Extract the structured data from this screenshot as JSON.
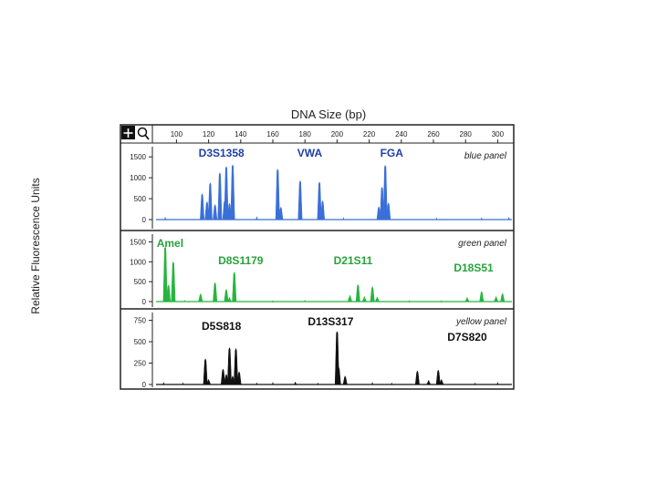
{
  "chart_data": {
    "type": "line",
    "title": "DNA Size (bp)",
    "ylabel": "Relative Fluorescence Units",
    "x_ticks": [
      100,
      120,
      140,
      160,
      180,
      200,
      220,
      240,
      260,
      280,
      300
    ],
    "xlim": [
      85,
      310
    ],
    "toolbar_icons": [
      "plus-icon",
      "magnifier-icon"
    ],
    "panels": [
      {
        "name": "blue panel",
        "color": "#3a6fd8",
        "label_color": "#1f3fa6",
        "y_ticks": [
          0,
          500,
          1000,
          1500
        ],
        "y_tick_labels": [
          "0",
          "500",
          "1000",
          "1500"
        ],
        "ylim": [
          0,
          1700
        ],
        "loci": [
          {
            "name": "D3S1358",
            "x": 128
          },
          {
            "name": "VWA",
            "x": 183
          },
          {
            "name": "FGA",
            "x": 234
          }
        ],
        "peaks": [
          {
            "x": 116,
            "h": 620
          },
          {
            "x": 119,
            "h": 430
          },
          {
            "x": 121,
            "h": 880
          },
          {
            "x": 124,
            "h": 360
          },
          {
            "x": 127,
            "h": 1120
          },
          {
            "x": 130,
            "h": 450
          },
          {
            "x": 131,
            "h": 1270
          },
          {
            "x": 133,
            "h": 390
          },
          {
            "x": 135,
            "h": 1310
          },
          {
            "x": 163,
            "h": 1210
          },
          {
            "x": 165,
            "h": 300
          },
          {
            "x": 177,
            "h": 930
          },
          {
            "x": 189,
            "h": 900
          },
          {
            "x": 191,
            "h": 450
          },
          {
            "x": 226,
            "h": 310
          },
          {
            "x": 228,
            "h": 780
          },
          {
            "x": 230,
            "h": 1300
          },
          {
            "x": 232,
            "h": 400
          }
        ],
        "minor_peaks": [
          {
            "x": 93,
            "h": 60
          },
          {
            "x": 150,
            "h": 70
          },
          {
            "x": 204,
            "h": 50
          },
          {
            "x": 262,
            "h": 40
          },
          {
            "x": 290,
            "h": 50
          },
          {
            "x": 307,
            "h": 60
          }
        ]
      },
      {
        "name": "green panel",
        "color": "#27b53e",
        "label_color": "#27a33a",
        "y_ticks": [
          0,
          500,
          1000,
          1500
        ],
        "y_tick_labels": [
          "0",
          "500",
          "1000",
          "1500"
        ],
        "ylim": [
          0,
          1650
        ],
        "loci": [
          {
            "name": "Amel",
            "x": 96
          },
          {
            "name": "D8S1179",
            "x": 140
          },
          {
            "name": "D21S11",
            "x": 210
          },
          {
            "name": "D18S51",
            "x": 285
          }
        ],
        "peaks": [
          {
            "x": 93,
            "h": 1380
          },
          {
            "x": 95,
            "h": 420
          },
          {
            "x": 98,
            "h": 1000
          },
          {
            "x": 115,
            "h": 200
          },
          {
            "x": 124,
            "h": 480
          },
          {
            "x": 131,
            "h": 310
          },
          {
            "x": 133,
            "h": 110
          },
          {
            "x": 136,
            "h": 740
          },
          {
            "x": 208,
            "h": 160
          },
          {
            "x": 213,
            "h": 430
          },
          {
            "x": 217,
            "h": 130
          },
          {
            "x": 222,
            "h": 380
          },
          {
            "x": 225,
            "h": 120
          },
          {
            "x": 281,
            "h": 110
          },
          {
            "x": 290,
            "h": 260
          },
          {
            "x": 299,
            "h": 130
          },
          {
            "x": 303,
            "h": 210
          }
        ],
        "minor_peaks": [
          {
            "x": 105,
            "h": 40
          },
          {
            "x": 160,
            "h": 30
          },
          {
            "x": 180,
            "h": 40
          },
          {
            "x": 245,
            "h": 30
          },
          {
            "x": 265,
            "h": 30
          }
        ]
      },
      {
        "name": "yellow panel",
        "color": "#111111",
        "label_color": "#111111",
        "y_ticks": [
          0,
          250,
          500,
          750
        ],
        "y_tick_labels": [
          "0",
          "250",
          "500",
          "750"
        ],
        "ylim": [
          0,
          820
        ],
        "loci": [
          {
            "name": "D5S818",
            "x": 128
          },
          {
            "name": "D13S317",
            "x": 196
          },
          {
            "name": "D7S820",
            "x": 281
          }
        ],
        "peaks": [
          {
            "x": 118,
            "h": 300
          },
          {
            "x": 120,
            "h": 60
          },
          {
            "x": 129,
            "h": 180
          },
          {
            "x": 131,
            "h": 120
          },
          {
            "x": 133,
            "h": 430
          },
          {
            "x": 135,
            "h": 100
          },
          {
            "x": 137,
            "h": 420
          },
          {
            "x": 139,
            "h": 150
          },
          {
            "x": 174,
            "h": 30
          },
          {
            "x": 200,
            "h": 620
          },
          {
            "x": 201,
            "h": 200
          },
          {
            "x": 205,
            "h": 100
          },
          {
            "x": 250,
            "h": 160
          },
          {
            "x": 257,
            "h": 50
          },
          {
            "x": 263,
            "h": 170
          },
          {
            "x": 265,
            "h": 60
          }
        ],
        "minor_peaks": [
          {
            "x": 92,
            "h": 25
          },
          {
            "x": 104,
            "h": 20
          },
          {
            "x": 150,
            "h": 20
          },
          {
            "x": 160,
            "h": 25
          },
          {
            "x": 188,
            "h": 20
          },
          {
            "x": 222,
            "h": 25
          },
          {
            "x": 234,
            "h": 20
          },
          {
            "x": 286,
            "h": 20
          },
          {
            "x": 300,
            "h": 25
          }
        ]
      }
    ]
  }
}
